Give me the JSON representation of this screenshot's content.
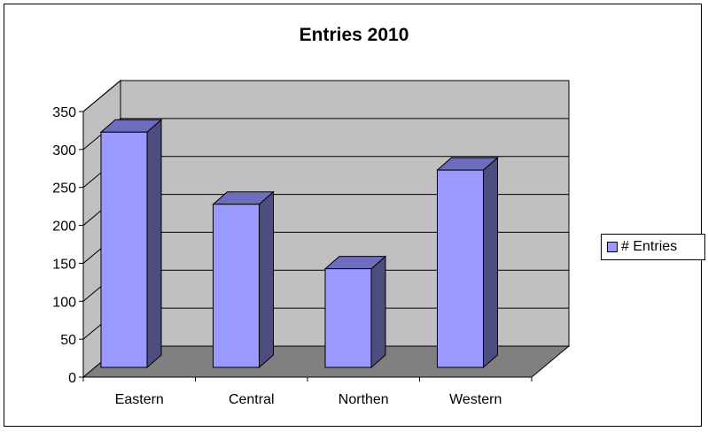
{
  "chart_data": {
    "type": "bar",
    "title": "Entries 2010",
    "categories": [
      "Eastern",
      "Central",
      "Northen",
      "Western"
    ],
    "series": [
      {
        "name": "# Entries",
        "values": [
          310,
          215,
          130,
          260
        ]
      }
    ],
    "ylim": [
      0,
      350
    ],
    "yticks": [
      0,
      50,
      100,
      150,
      200,
      250,
      300,
      350
    ],
    "grid": true,
    "legend": "right",
    "style": "3d-column"
  },
  "colors": {
    "bar_front": "#9999ff",
    "bar_side": "#4d4d80",
    "bar_top": "#6d6dbd",
    "wall": "#c0c0c0",
    "floor": "#808080",
    "grid": "#000000"
  }
}
